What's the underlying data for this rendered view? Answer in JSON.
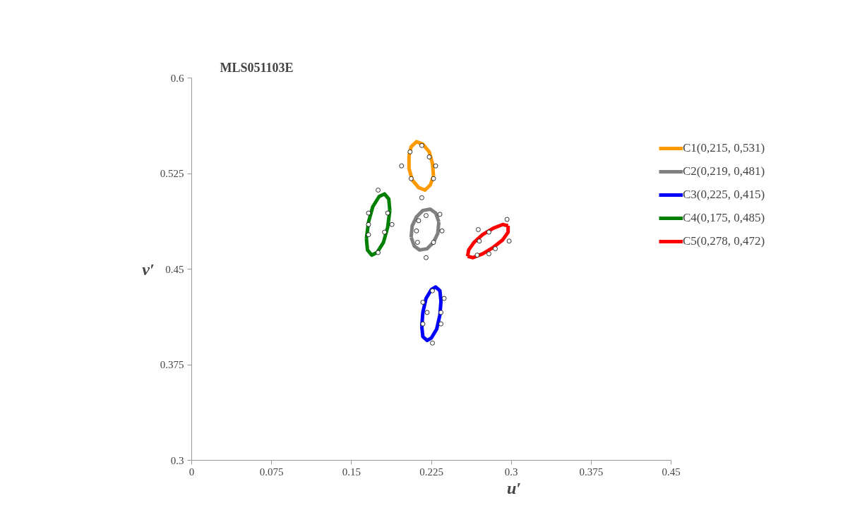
{
  "chart_data": {
    "type": "line",
    "title": "MLS051103E",
    "xlabel": "u′",
    "ylabel": "v′",
    "xlim": [
      0,
      0.45
    ],
    "xticks": [
      0,
      0.075,
      0.15,
      0.225,
      0.3,
      0.375,
      0.45
    ],
    "ylim": [
      0.3,
      0.6
    ],
    "yticks": [
      0.3,
      0.375,
      0.45,
      0.525,
      0.6
    ],
    "grid": false,
    "legend": "right",
    "line_style": "solid",
    "series": [
      {
        "name": "C1(0,215, 0,531)",
        "color": "#ff9900",
        "x": [
          0.204,
          0.206,
          0.211,
          0.217,
          0.223,
          0.226,
          0.227,
          null,
          0.204,
          0.204,
          0.207,
          0.213,
          0.219,
          0.224,
          0.227
        ],
        "values": [
          0.539,
          0.546,
          0.55,
          0.548,
          0.542,
          0.533,
          0.523,
          null,
          0.539,
          0.529,
          0.52,
          0.514,
          0.512,
          0.516,
          0.523
        ]
      },
      {
        "name": "C2(0,219, 0,481)",
        "color": "#808080",
        "x": [
          0.206,
          0.207,
          0.211,
          0.217,
          0.224,
          0.229,
          0.232,
          null,
          0.206,
          0.209,
          0.214,
          0.221,
          0.227,
          0.231,
          0.232
        ],
        "values": [
          0.475,
          0.484,
          0.491,
          0.496,
          0.497,
          0.494,
          0.487,
          null,
          0.475,
          0.468,
          0.465,
          0.466,
          0.471,
          0.478,
          0.487
        ]
      },
      {
        "name": "C3(0,225, 0,415)",
        "color": "#0000ff",
        "x": [
          0.216,
          0.217,
          0.22,
          0.225,
          0.229,
          0.233,
          0.234,
          null,
          0.216,
          0.217,
          0.221,
          0.225,
          0.23,
          0.233,
          0.234
        ],
        "values": [
          0.405,
          0.416,
          0.427,
          0.434,
          0.436,
          0.433,
          0.425,
          null,
          0.405,
          0.397,
          0.394,
          0.396,
          0.403,
          0.414,
          0.425
        ]
      },
      {
        "name": "C4(0,175, 0,485)",
        "color": "#008000",
        "x": [
          0.164,
          0.166,
          0.17,
          0.176,
          0.181,
          0.185,
          0.186,
          null,
          0.164,
          0.165,
          0.169,
          0.174,
          0.18,
          0.184,
          0.186
        ],
        "values": [
          0.474,
          0.487,
          0.499,
          0.507,
          0.509,
          0.505,
          0.496,
          null,
          0.474,
          0.465,
          0.461,
          0.463,
          0.471,
          0.483,
          0.496
        ]
      },
      {
        "name": "C5(0,278, 0,472)",
        "color": "#ff0000",
        "x": [
          0.259,
          0.26,
          0.265,
          0.273,
          0.283,
          0.292,
          0.297,
          null,
          0.259,
          0.264,
          0.273,
          0.283,
          0.292,
          0.297,
          0.297
        ],
        "values": [
          0.46,
          0.465,
          0.471,
          0.477,
          0.482,
          0.485,
          0.484,
          null,
          0.46,
          0.459,
          0.462,
          0.467,
          0.473,
          0.479,
          0.484
        ]
      },
      {
        "type": "scatter",
        "marker": "circle",
        "color": "#000000",
        "x": [
          0.216,
          0.205,
          0.223,
          0.197,
          0.229,
          0.206,
          0.227,
          0.216,
          0.175,
          0.166,
          0.184,
          0.166,
          0.188,
          0.181,
          0.166,
          0.175,
          0.22,
          0.233,
          0.213,
          0.211,
          0.235,
          0.212,
          0.227,
          0.22,
          0.296,
          0.269,
          0.279,
          0.27,
          0.298,
          0.268,
          0.279,
          0.285,
          0.226,
          0.217,
          0.237,
          0.221,
          0.234,
          0.217,
          0.234,
          0.226
        ],
        "values": [
          0.547,
          0.542,
          0.538,
          0.531,
          0.531,
          0.521,
          0.521,
          0.506,
          0.512,
          0.494,
          0.494,
          0.485,
          0.485,
          0.479,
          0.477,
          0.463,
          0.492,
          0.493,
          0.488,
          0.48,
          0.48,
          0.471,
          0.471,
          0.459,
          0.489,
          0.481,
          0.479,
          0.472,
          0.472,
          0.461,
          0.462,
          0.466,
          0.433,
          0.424,
          0.427,
          0.416,
          0.416,
          0.407,
          0.407,
          0.392
        ]
      }
    ]
  }
}
